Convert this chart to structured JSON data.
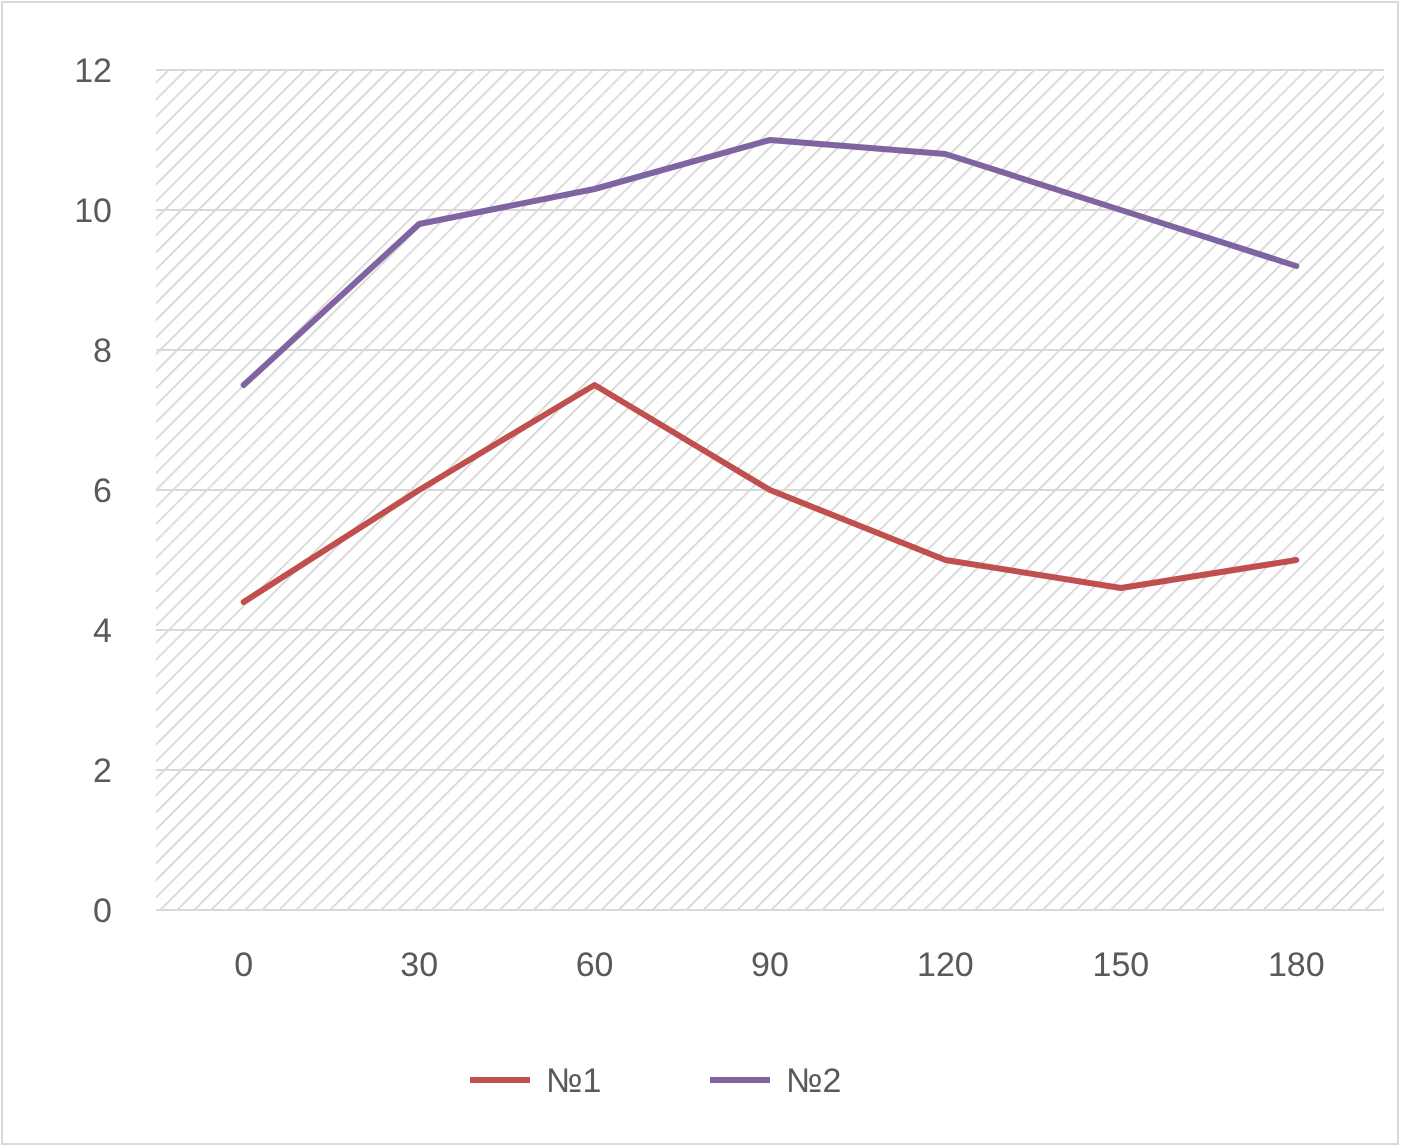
{
  "chart_data": {
    "type": "line",
    "categories": [
      "0",
      "30",
      "60",
      "90",
      "120",
      "150",
      "180"
    ],
    "series": [
      {
        "name": "№1",
        "color": "#c0504d",
        "values": [
          4.4,
          6.0,
          7.5,
          6.0,
          5.0,
          4.6,
          5.0
        ]
      },
      {
        "name": "№2",
        "color": "#8064a2",
        "values": [
          7.5,
          9.8,
          10.3,
          11.0,
          10.8,
          10.0,
          9.2
        ]
      }
    ],
    "ylim": [
      0,
      12
    ],
    "yticks": [
      0,
      2,
      4,
      6,
      8,
      10,
      12
    ],
    "grid": "y",
    "legend": "bottom",
    "marker": "none",
    "line_style": "solid"
  }
}
